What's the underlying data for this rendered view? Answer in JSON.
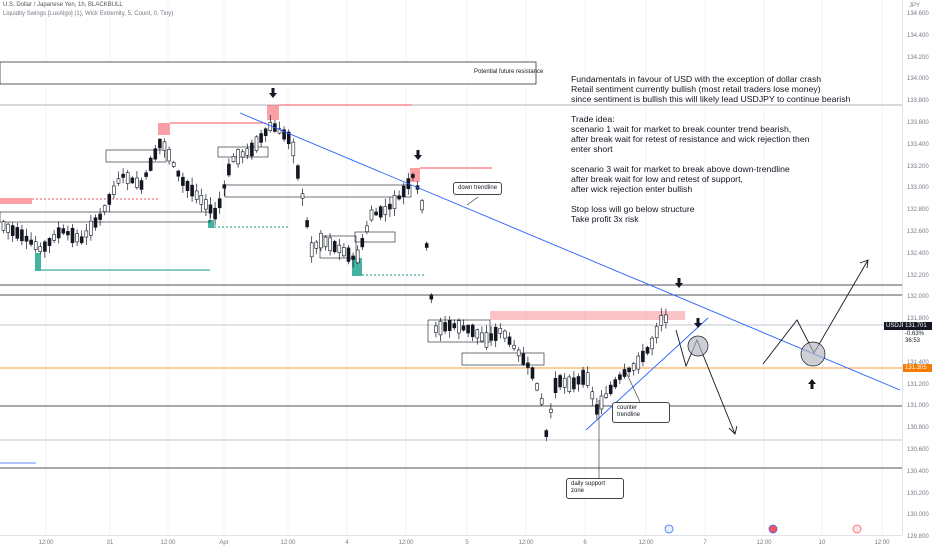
{
  "header": {
    "symbol_line": "U.S. Dollar / Japanese Yen, 1h, BLACKBULL",
    "indicator_line": "Liquidity Swings [LuxAlgo] (1), Wick Extremity, 5, Count, 0, Tiny)"
  },
  "price_axis": {
    "currency": "JPY",
    "ticks": [
      "134.600",
      "134.400",
      "134.200",
      "134.000",
      "133.800",
      "133.600",
      "133.400",
      "133.200",
      "133.000",
      "132.800",
      "132.600",
      "132.400",
      "132.200",
      "132.000",
      "131.800",
      "131.600",
      "131.400",
      "131.200",
      "131.000",
      "130.800",
      "130.600",
      "130.400",
      "130.200",
      "130.000",
      "129.800"
    ]
  },
  "price_tags": {
    "symbol": "USDJPY",
    "last_price": "131.701",
    "change": "-0.63%",
    "countdown": "36:53",
    "level": "131.305"
  },
  "time_axis": {
    "ticks": [
      "12:00",
      "31",
      "12:00",
      "Apr",
      "12:00",
      "4",
      "12:00",
      "5",
      "12:00",
      "6",
      "12:00",
      "7",
      "12:00",
      "10",
      "12:00"
    ]
  },
  "annotations": {
    "resistance_label": "Potential future resistance",
    "down_trendline_label": "down trendline",
    "counter_trendline_label": "counter\ntrendline",
    "daily_support_label": "daily support\nzone",
    "idea_text": "Fundamentals in favour of USD with the exception of dollar crash\nRetail sentiment currently bullish (most retail traders lose money)\nsince sentiment is bullish this will likely lead USDJPY to continue bearish\n\nTrade idea:\nscenario 1 wait for market to break counter trend bearish,\nafter break wait for retest of resistance and wick rejection then\nenter short\n\nscenario 3 wait for market to break above down-trendline\nafter break wait for low and retest of support,\nafter wick rejection enter bullish\n\nStop loss will go below structure\nTake profit 3x risk"
  },
  "colors": {
    "up_candle": "#131722",
    "down_candle": "#131722",
    "trendline": "#2962ff",
    "liquidity_zone": "#f7525f",
    "support_zone": "#089981",
    "level_line": "#f57c00"
  }
}
